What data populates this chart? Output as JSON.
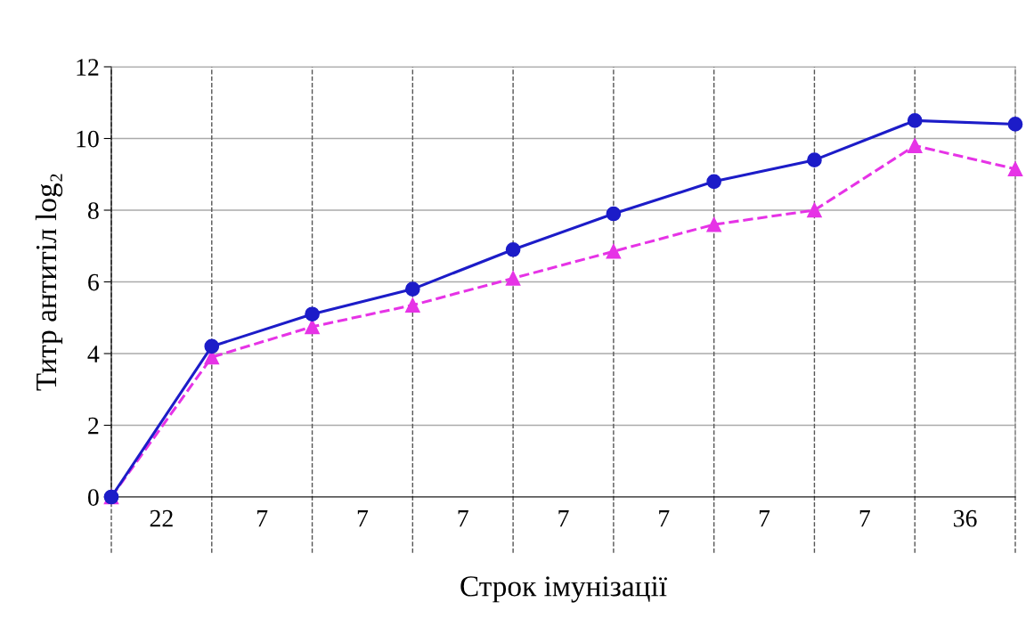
{
  "chart_data": {
    "type": "line",
    "xlabel": "Строк імунізації",
    "ylabel": "Титр антитіл log₂",
    "categories": [
      null,
      null,
      null,
      null,
      null,
      null,
      null,
      null,
      null,
      null
    ],
    "series": [
      {
        "color": "#1c1cc8",
        "marker": "circle",
        "line_style": "solid",
        "values": [
          0,
          4.2,
          5.1,
          5.8,
          6.9,
          7.9,
          8.8,
          9.4,
          10.5,
          10.4
        ]
      },
      {
        "color": "#e633e6",
        "marker": "triangle",
        "line_style": "dashed",
        "values": [
          0,
          3.9,
          4.75,
          5.35,
          6.1,
          6.85,
          7.6,
          8.0,
          9.8,
          9.15
        ]
      }
    ],
    "ylim": [
      0,
      12
    ],
    "yticks": [
      0,
      2,
      4,
      6,
      8,
      10,
      12
    ],
    "grid": true,
    "annotations": [
      "22",
      "7",
      "7",
      "7",
      "7",
      "7",
      "7",
      "7",
      "36"
    ]
  }
}
